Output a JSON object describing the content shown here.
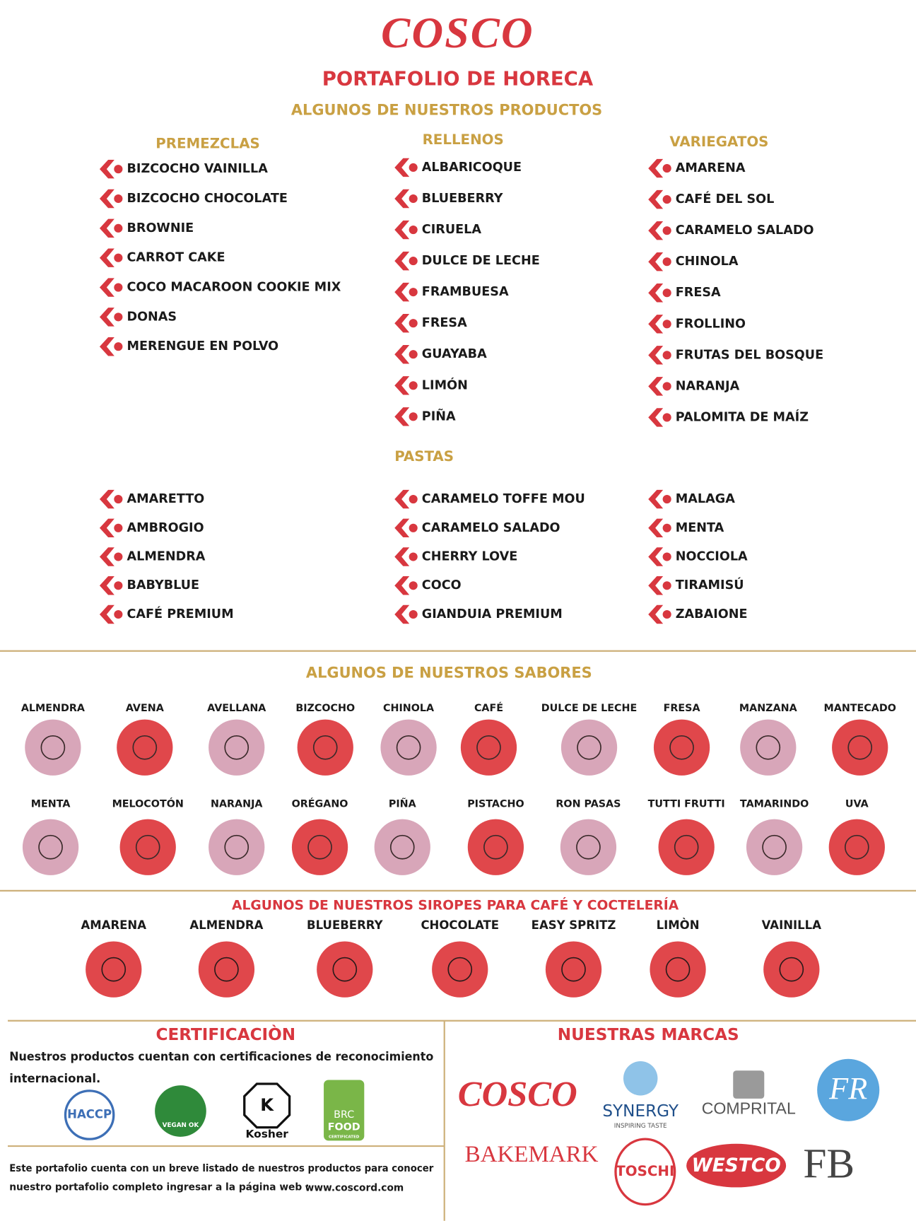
{
  "header": {
    "logo": "COSCO",
    "title": "PORTAFOLIO DE HORECA",
    "subtitle": "ALGUNOS DE NUESTROS PRODUCTOS"
  },
  "products": {
    "columns": [
      {
        "heading": "PREMEZCLAS",
        "items": [
          "BIZCOCHO VAINILLA",
          "BIZCOCHO CHOCOLATE",
          "BROWNIE",
          "CARROT CAKE",
          "COCO MACAROON COOKIE MIX",
          "DONAS",
          "MERENGUE EN POLVO"
        ]
      },
      {
        "heading": "RELLENOS",
        "items": [
          "ALBARICOQUE",
          "BLUEBERRY",
          "CIRUELA",
          "DULCE DE LECHE",
          "FRAMBUESA",
          "FRESA",
          "GUAYABA",
          "LIMÓN",
          "PIÑA"
        ]
      },
      {
        "heading": "VARIEGATOS",
        "items": [
          "AMARENA",
          "CAFÉ DEL SOL",
          "CARAMELO SALADO",
          "CHINOLA",
          "FRESA",
          "FROLLINO",
          "FRUTAS DEL BOSQUE",
          "NARANJA",
          "PALOMITA DE MAÍZ"
        ]
      }
    ],
    "pastas": {
      "heading": "PASTAS",
      "columns": [
        [
          "AMARETTO",
          "AMBROGIO",
          "ALMENDRA",
          "BABYBLUE",
          "CAFÉ PREMIUM"
        ],
        [
          "CARAMELO TOFFE MOU",
          "CARAMELO SALADO",
          "CHERRY LOVE",
          "COCO",
          "GIANDUIA PREMIUM"
        ],
        [
          "MALAGA",
          "MENTA",
          "NOCCIOLA",
          "TIRAMISÚ",
          "ZABAIONE"
        ]
      ]
    }
  },
  "flavors": {
    "title": "ALGUNOS DE NUESTROS SABORES",
    "items": [
      "ALMENDRA",
      "AVENA",
      "AVELLANA",
      "BIZCOCHO",
      "CHINOLA",
      "CAFÉ",
      "DULCE DE LECHE",
      "FRESA",
      "MANZANA",
      "MANTECADO",
      "MENTA",
      "MELOCOTÓN",
      "NARANJA",
      "ORÉGANO",
      "PIÑA",
      "PISTACHO",
      "RON PASAS",
      "TUTTI FRUTTI",
      "TAMARINDO",
      "UVA"
    ]
  },
  "syrups": {
    "title": "ALGUNOS DE NUESTROS SIROPES PARA CAFÉ Y COCTELERÍA",
    "items": [
      "AMARENA",
      "ALMENDRA",
      "BLUEBERRY",
      "CHOCOLATE",
      "EASY SPRITZ",
      "LIMÒN",
      "VAINILLA"
    ]
  },
  "certification": {
    "title": "CERTIFICACIÒN",
    "text": [
      "Nuestros productos cuentan con certificaciones de reconocimiento",
      "internacional."
    ],
    "logos": {
      "haccp": "HACCP",
      "vegan": "VEGAN OK",
      "kosher_mark": "K",
      "kosher": "Kosher",
      "brc": [
        "BRC",
        "FOOD",
        "CERTIFICATED"
      ]
    }
  },
  "brands": {
    "title": "NUESTRAS MARCAS",
    "logos": {
      "cosco": "COSCO",
      "synergy": "SYNERGY",
      "synergy_tagline": "INSPIRING TASTE",
      "comprital": "COMPRITAL",
      "fr": "FR",
      "bakemark": "BAKEMARK",
      "toschi": "TOSCHI",
      "westco": "WESTCO",
      "fb": "FB"
    }
  },
  "footer": {
    "text": [
      "Este portafolio cuenta con un breve listado de nuestros productos para conocer",
      "nuestro portafolio  completo ingresar a la página web :"
    ],
    "url": "www.coscord.com"
  }
}
